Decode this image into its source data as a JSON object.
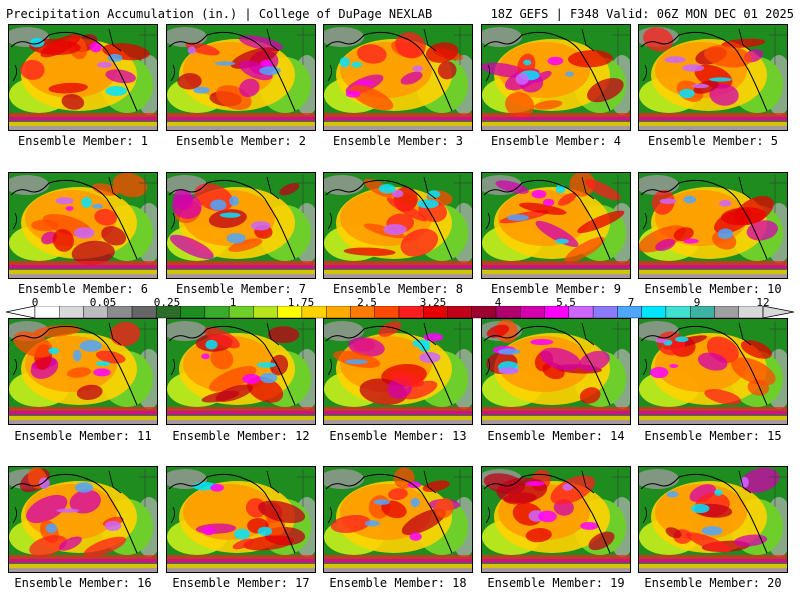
{
  "header": {
    "left": "Precipitation Accumulation (in.) | College of DuPage NEXLAB",
    "right": "18Z GEFS | F348 Valid: 06Z MON DEC 01 2025"
  },
  "members": [
    "Ensemble Member: 1",
    "Ensemble Member: 2",
    "Ensemble Member: 3",
    "Ensemble Member: 4",
    "Ensemble Member: 5",
    "Ensemble Member: 6",
    "Ensemble Member: 7",
    "Ensemble Member: 8",
    "Ensemble Member: 9",
    "Ensemble Member: 10",
    "Ensemble Member: 11",
    "Ensemble Member: 12",
    "Ensemble Member: 13",
    "Ensemble Member: 14",
    "Ensemble Member: 15",
    "Ensemble Member: 16",
    "Ensemble Member: 17",
    "Ensemble Member: 18",
    "Ensemble Member: 19",
    "Ensemble Member: 20"
  ],
  "legend": {
    "labels": [
      "0",
      "0.05",
      "0.25",
      "1",
      "1.75",
      "2.5",
      "3.25",
      "4",
      "5.5",
      "7",
      "9",
      "12"
    ],
    "colors": [
      "#ffffff",
      "#d9d9d9",
      "#bdbdbd",
      "#8c8c8c",
      "#666666",
      "#2a6e2a",
      "#1e8c1e",
      "#3aab2a",
      "#6fcf2a",
      "#b5e61d",
      "#ffff00",
      "#ffd200",
      "#ffaa00",
      "#ff7a00",
      "#ff4b00",
      "#ff1e1e",
      "#e60000",
      "#c00018",
      "#9c0030",
      "#b0006e",
      "#d400b0",
      "#ff00ff",
      "#cc66ff",
      "#8a7bff",
      "#4da6ff",
      "#00e5ff",
      "#40e0d0",
      "#3cb3a3",
      "#a0a0a0",
      "#d8d8d8"
    ]
  }
}
